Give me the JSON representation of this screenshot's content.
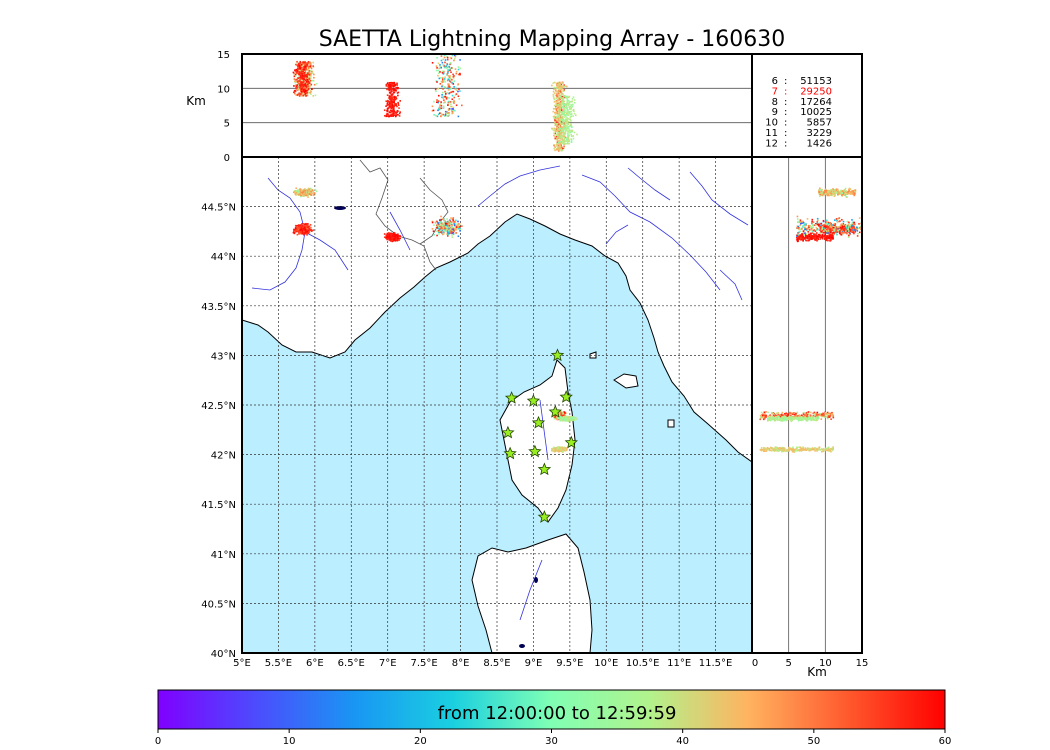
{
  "title": "SAETTA Lightning Mapping Array - 160630",
  "alt_axis": {
    "label": "Km",
    "ticks": [
      "0",
      "5",
      "10",
      "15"
    ],
    "values": [
      0,
      5,
      10,
      15
    ]
  },
  "lon_axis": {
    "ticks": [
      "5°E",
      "5.5°E",
      "6°E",
      "6.5°E",
      "7°E",
      "7.5°E",
      "8°E",
      "8.5°E",
      "9°E",
      "9.5°E",
      "10°E",
      "10.5°E",
      "11°E",
      "11.5°E"
    ],
    "values": [
      5,
      5.5,
      6,
      6.5,
      7,
      7.5,
      8,
      8.5,
      9,
      9.5,
      10,
      10.5,
      11,
      11.5
    ],
    "range": [
      5,
      12
    ]
  },
  "lat_axis": {
    "ticks": [
      "40°N",
      "40.5°N",
      "41°N",
      "41.5°N",
      "42°N",
      "42.5°N",
      "43°N",
      "43.5°N",
      "44°N",
      "44.5°N"
    ],
    "values": [
      40,
      40.5,
      41,
      41.5,
      42,
      42.5,
      43,
      43.5,
      44,
      44.5
    ],
    "range": [
      40,
      45
    ]
  },
  "km_axis": {
    "label": "Km",
    "ticks": [
      "0",
      "5",
      "10",
      "15"
    ],
    "values": [
      0,
      5,
      10,
      15
    ]
  },
  "counts": [
    {
      "level": "6",
      "count": "51153",
      "highlight": false
    },
    {
      "level": "7",
      "count": "29250",
      "highlight": true
    },
    {
      "level": "8",
      "count": "17264",
      "highlight": false
    },
    {
      "level": "9",
      "count": "10025",
      "highlight": false
    },
    {
      "level": "10",
      "count": "5857",
      "highlight": false
    },
    {
      "level": "11",
      "count": "3229",
      "highlight": false
    },
    {
      "level": "12",
      "count": "1426",
      "highlight": false
    }
  ],
  "colorbar": {
    "label": "from 12:00:00 to 12:59:59",
    "ticks": [
      "0",
      "10",
      "20",
      "30",
      "40",
      "50",
      "60"
    ],
    "values": [
      0,
      10,
      20,
      30,
      40,
      50,
      60
    ],
    "range": [
      0,
      60
    ]
  },
  "colors": {
    "sea": "#bbeeff",
    "rivers": "#3333dd",
    "highlight": "#ff0000",
    "station": "#99ee22"
  },
  "stations": [
    {
      "lon": 9.33,
      "lat": 43.0
    },
    {
      "lon": 8.7,
      "lat": 42.57
    },
    {
      "lon": 9.0,
      "lat": 42.54
    },
    {
      "lon": 9.45,
      "lat": 42.58
    },
    {
      "lon": 9.3,
      "lat": 42.43
    },
    {
      "lon": 9.07,
      "lat": 42.32
    },
    {
      "lon": 8.65,
      "lat": 42.22
    },
    {
      "lon": 9.52,
      "lat": 42.12
    },
    {
      "lon": 9.02,
      "lat": 42.03
    },
    {
      "lon": 8.68,
      "lat": 42.01
    },
    {
      "lon": 9.15,
      "lat": 41.85
    },
    {
      "lon": 9.15,
      "lat": 41.37
    }
  ],
  "clusters": [
    {
      "lon": 5.85,
      "lat": 44.65,
      "w": 0.18,
      "h": 0.05,
      "alt": [
        9,
        14
      ],
      "t": [
        30,
        50
      ]
    },
    {
      "lon": 5.82,
      "lat": 44.28,
      "w": 0.16,
      "h": 0.07,
      "alt": [
        9,
        14
      ],
      "t": [
        50,
        60
      ]
    },
    {
      "lon": 7.05,
      "lat": 44.2,
      "w": 0.12,
      "h": 0.05,
      "alt": [
        6,
        11
      ],
      "t": [
        55,
        60
      ]
    },
    {
      "lon": 7.8,
      "lat": 44.3,
      "w": 0.25,
      "h": 0.12,
      "alt": [
        6,
        15
      ],
      "t": [
        5,
        60
      ]
    },
    {
      "lon": 9.35,
      "lat": 42.4,
      "w": 0.1,
      "h": 0.05,
      "alt": [
        1,
        11
      ],
      "t": [
        30,
        60
      ]
    },
    {
      "lon": 9.35,
      "lat": 42.06,
      "w": 0.12,
      "h": 0.03,
      "alt": [
        1,
        11
      ],
      "t": [
        35,
        45
      ]
    },
    {
      "lon": 9.45,
      "lat": 42.37,
      "w": 0.15,
      "h": 0.03,
      "alt": [
        2,
        9
      ],
      "t": [
        30,
        40
      ]
    }
  ]
}
